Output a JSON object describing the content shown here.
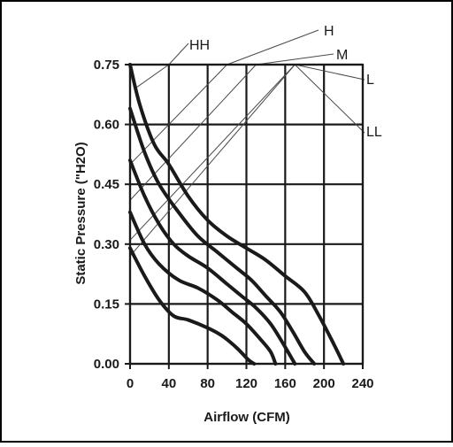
{
  "chart_data": {
    "type": "line",
    "title": "",
    "xlabel": "Airflow (CFM)",
    "ylabel": "Static Pressure (\"H2O)",
    "xlim": [
      0,
      240
    ],
    "ylim": [
      0,
      0.75
    ],
    "x_ticks": [
      "0",
      "40",
      "80",
      "120",
      "160",
      "200",
      "240"
    ],
    "y_ticks": [
      "0.00",
      "0.15",
      "0.30",
      "0.45",
      "0.60",
      "0.75"
    ],
    "grid": true,
    "series": [
      {
        "name": "HH",
        "points": [
          [
            0,
            0.75
          ],
          [
            10,
            0.65
          ],
          [
            25,
            0.55
          ],
          [
            40,
            0.5
          ],
          [
            60,
            0.42
          ],
          [
            80,
            0.36
          ],
          [
            100,
            0.32
          ],
          [
            120,
            0.29
          ],
          [
            140,
            0.26
          ],
          [
            160,
            0.22
          ],
          [
            180,
            0.18
          ],
          [
            195,
            0.12
          ],
          [
            210,
            0.05
          ],
          [
            220,
            0.0
          ]
        ]
      },
      {
        "name": "H",
        "points": [
          [
            0,
            0.64
          ],
          [
            15,
            0.53
          ],
          [
            30,
            0.45
          ],
          [
            50,
            0.38
          ],
          [
            70,
            0.32
          ],
          [
            90,
            0.28
          ],
          [
            110,
            0.24
          ],
          [
            125,
            0.21
          ],
          [
            140,
            0.17
          ],
          [
            155,
            0.13
          ],
          [
            168,
            0.08
          ],
          [
            180,
            0.03
          ],
          [
            190,
            0.0
          ]
        ]
      },
      {
        "name": "M",
        "points": [
          [
            0,
            0.51
          ],
          [
            15,
            0.42
          ],
          [
            30,
            0.35
          ],
          [
            45,
            0.3
          ],
          [
            60,
            0.27
          ],
          [
            80,
            0.24
          ],
          [
            100,
            0.2
          ],
          [
            115,
            0.17
          ],
          [
            130,
            0.14
          ],
          [
            145,
            0.1
          ],
          [
            158,
            0.05
          ],
          [
            170,
            0.0
          ]
        ]
      },
      {
        "name": "L",
        "points": [
          [
            0,
            0.38
          ],
          [
            15,
            0.3
          ],
          [
            30,
            0.25
          ],
          [
            50,
            0.21
          ],
          [
            70,
            0.19
          ],
          [
            90,
            0.16
          ],
          [
            105,
            0.13
          ],
          [
            120,
            0.1
          ],
          [
            135,
            0.06
          ],
          [
            145,
            0.03
          ],
          [
            150,
            0.0
          ]
        ]
      },
      {
        "name": "LL",
        "points": [
          [
            0,
            0.29
          ],
          [
            15,
            0.22
          ],
          [
            30,
            0.16
          ],
          [
            45,
            0.12
          ],
          [
            60,
            0.11
          ],
          [
            80,
            0.09
          ],
          [
            95,
            0.07
          ],
          [
            110,
            0.04
          ],
          [
            122,
            0.01
          ],
          [
            128,
            0.0
          ]
        ]
      }
    ],
    "system_lines": [
      {
        "label": "HH",
        "points": [
          [
            5,
            0.69
          ],
          [
            40,
            0.75
          ]
        ]
      },
      {
        "label": "H",
        "points": [
          [
            0,
            0.5
          ],
          [
            100,
            0.75
          ]
        ]
      },
      {
        "label": "M",
        "points": [
          [
            0,
            0.41
          ],
          [
            130,
            0.75
          ]
        ]
      },
      {
        "label": "L",
        "points": [
          [
            0,
            0.31
          ],
          [
            170,
            0.75
          ]
        ]
      },
      {
        "label": "LL",
        "points": [
          [
            0,
            0.27
          ],
          [
            170,
            0.75
          ]
        ]
      }
    ],
    "curve_labels": [
      {
        "text": "HH"
      },
      {
        "text": "H"
      },
      {
        "text": "M"
      },
      {
        "text": "L"
      },
      {
        "text": "LL"
      }
    ],
    "colors": {
      "curve": "#1a1a1a",
      "grid": "#1a1a1a",
      "system_line": "#4a4a4a",
      "frame": "#000000"
    }
  }
}
